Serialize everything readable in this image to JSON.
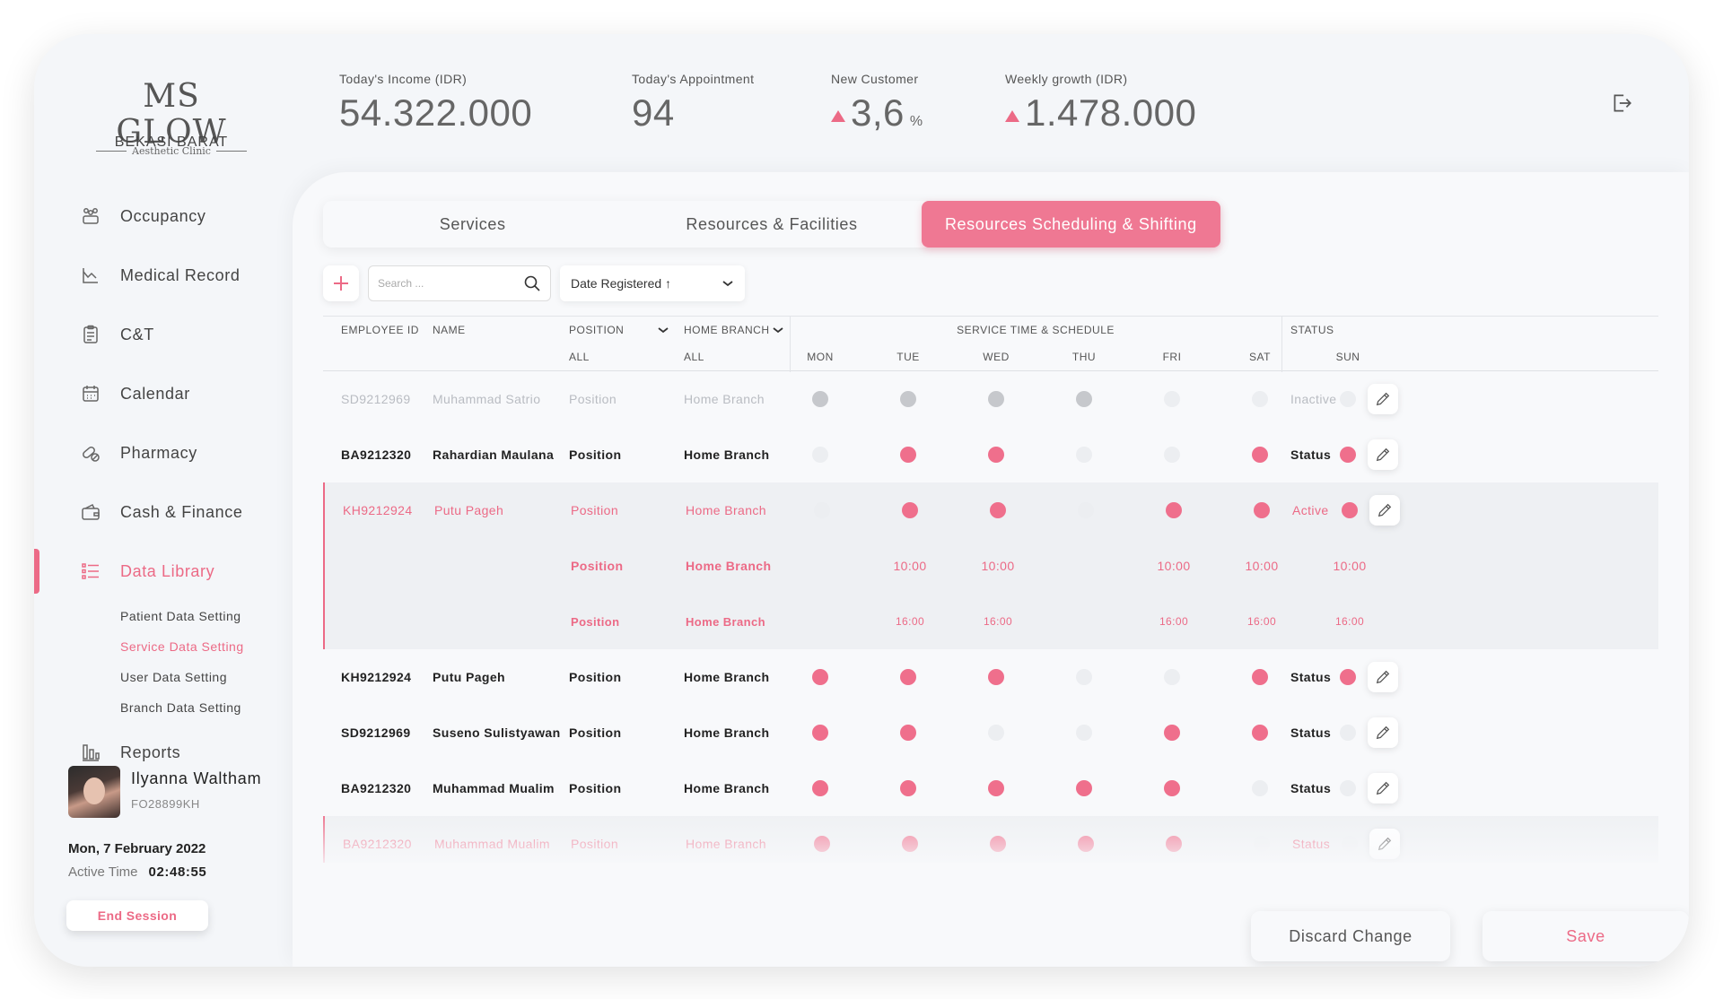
{
  "brand": {
    "name": "MS GLOW",
    "subtitle": "Aesthetic Clinic",
    "branch": "BEKASI BARAT"
  },
  "sidebar": {
    "items": [
      {
        "label": "Occupancy",
        "icon": "occupancy-icon"
      },
      {
        "label": "Medical Record",
        "icon": "medical-record-icon"
      },
      {
        "label": "C&T",
        "icon": "clipboard-icon"
      },
      {
        "label": "Calendar",
        "icon": "calendar-icon"
      },
      {
        "label": "Pharmacy",
        "icon": "pill-icon"
      },
      {
        "label": "Cash & Finance",
        "icon": "wallet-icon"
      },
      {
        "label": "Data Library",
        "icon": "list-icon",
        "active": true
      }
    ],
    "sub_items": [
      {
        "label": "Patient Data Setting"
      },
      {
        "label": "Service Data Setting",
        "active": true
      },
      {
        "label": "User Data Setting"
      },
      {
        "label": "Branch Data Setting"
      }
    ],
    "reports": {
      "label": "Reports",
      "icon": "bar-chart-icon"
    }
  },
  "user": {
    "name": "Ilyanna Waltham",
    "id": "FO28899KH",
    "date": "Mon, 7 February 2022",
    "active_time_label": "Active Time",
    "active_time": "02:48:55",
    "end_session": "End Session"
  },
  "stats": [
    {
      "label": "Today's Income (IDR)",
      "value": "54.322.000",
      "trend": ""
    },
    {
      "label": "Today's Appointment",
      "value": "94",
      "trend": ""
    },
    {
      "label": "New Customer",
      "value": "3,6",
      "unit": "%",
      "trend": "up"
    },
    {
      "label": "Weekly growth (IDR)",
      "value": "1.478.000",
      "trend": "up"
    }
  ],
  "tabs": [
    {
      "label": "Services"
    },
    {
      "label": "Resources & Facilities"
    },
    {
      "label": "Resources Scheduling & Shifting",
      "active": true
    }
  ],
  "toolbar": {
    "search_placeholder": "Search ...",
    "sort_label": "Date Registered ↑"
  },
  "table": {
    "headers": {
      "employee_id": "EMPLOYEE ID",
      "name": "NAME",
      "position": "POSITION",
      "position_filter": "ALL",
      "home_branch": "HOME BRANCH",
      "home_branch_filter": "ALL",
      "schedule": "SERVICE TIME & SCHEDULE",
      "status": "STATUS"
    },
    "days": [
      "MON",
      "TUE",
      "WED",
      "THU",
      "FRI",
      "SAT",
      "SUN"
    ],
    "rows": [
      {
        "id": "SD9212969",
        "name": "Muhammad Satrio",
        "position": "Position",
        "branch": "Home Branch",
        "schedule": [
          1,
          1,
          1,
          1,
          0,
          0,
          0
        ],
        "status": "Inactive",
        "state": "inactive"
      },
      {
        "id": "BA9212320",
        "name": "Rahardian Maulana",
        "position": "Position",
        "branch": "Home Branch",
        "schedule": [
          0,
          1,
          1,
          0,
          0,
          1,
          1
        ],
        "status": "Status",
        "state": "normal"
      },
      {
        "id": "KH9212924",
        "name": "Putu Pageh",
        "position": "Position",
        "branch": "Home Branch",
        "schedule": [
          0,
          1,
          1,
          0,
          1,
          1,
          1
        ],
        "status": "Active",
        "state": "selected",
        "start_position": "Position",
        "start_branch": "Home Branch",
        "start_times": [
          "",
          "10:00",
          "10:00",
          "",
          "10:00",
          "10:00",
          "10:00"
        ],
        "end_position": "Position",
        "end_branch": "Home Branch",
        "end_times": [
          "",
          "16:00",
          "16:00",
          "",
          "16:00",
          "16:00",
          "16:00"
        ]
      },
      {
        "id": "KH9212924",
        "name": "Putu Pageh",
        "position": "Position",
        "branch": "Home Branch",
        "schedule": [
          1,
          1,
          1,
          0,
          0,
          1,
          1
        ],
        "status": "Status",
        "state": "normal"
      },
      {
        "id": "SD9212969",
        "name": "Suseno Sulistyawan",
        "position": "Position",
        "branch": "Home Branch",
        "schedule": [
          1,
          1,
          0,
          0,
          1,
          1,
          0
        ],
        "status": "Status",
        "state": "normal"
      },
      {
        "id": "BA9212320",
        "name": "Muhammad Mualim",
        "position": "Position",
        "branch": "Home Branch",
        "schedule": [
          1,
          1,
          1,
          1,
          1,
          0,
          0
        ],
        "status": "Status",
        "state": "normal"
      },
      {
        "id": "BA9212320",
        "name": "Muhammad Mualim",
        "position": "Position",
        "branch": "Home Branch",
        "schedule": [
          1,
          1,
          1,
          1,
          1,
          0,
          0
        ],
        "status": "Status",
        "state": "highlight"
      }
    ]
  },
  "actions": {
    "discard": "Discard Change",
    "save": "Save"
  },
  "colors": {
    "accent": "#ec6a86",
    "inactive_text": "#b9bcc2",
    "active_dot": "#ef6f8c",
    "inactive_dot": "#c6c8cc",
    "empty_dot": "#eceef1"
  }
}
